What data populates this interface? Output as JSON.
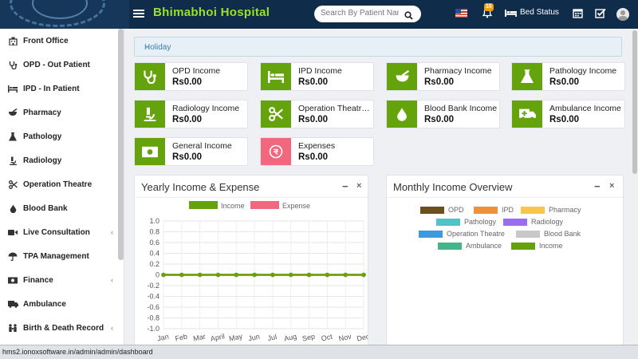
{
  "header": {
    "hospital_name": "Bhimabhoi Hospital",
    "search_placeholder": "Search By Patient Name",
    "notification_count": "16",
    "bed_status_label": "Bed Status"
  },
  "sidebar": {
    "items": [
      {
        "label": "Front Office",
        "icon": "front-office-icon"
      },
      {
        "label": "OPD - Out Patient",
        "icon": "stethoscope-icon"
      },
      {
        "label": "IPD - In Patient",
        "icon": "bed-icon"
      },
      {
        "label": "Pharmacy",
        "icon": "mortar-icon"
      },
      {
        "label": "Pathology",
        "icon": "flask-icon"
      },
      {
        "label": "Radiology",
        "icon": "microscope-icon"
      },
      {
        "label": "Operation Theatre",
        "icon": "scissors-icon"
      },
      {
        "label": "Blood Bank",
        "icon": "drop-icon"
      },
      {
        "label": "Live Consultation",
        "icon": "video-icon",
        "chevron": "‹"
      },
      {
        "label": "TPA Management",
        "icon": "umbrella-icon"
      },
      {
        "label": "Finance",
        "icon": "money-icon",
        "chevron": "‹"
      },
      {
        "label": "Ambulance",
        "icon": "ambulance-icon"
      },
      {
        "label": "Birth & Death Record",
        "icon": "family-icon",
        "chevron": "‹"
      }
    ]
  },
  "alert": {
    "text": "Holiday",
    "close": "×"
  },
  "cards": [
    {
      "label": "OPD Income",
      "value": "Rs0.00",
      "icon": "stethoscope-icon"
    },
    {
      "label": "IPD Income",
      "value": "Rs0.00",
      "icon": "bed-icon"
    },
    {
      "label": "Pharmacy Income",
      "value": "Rs0.00",
      "icon": "mortar-icon"
    },
    {
      "label": "Pathology Income",
      "value": "Rs0.00",
      "icon": "flask-icon"
    },
    {
      "label": "Radiology Income",
      "value": "Rs0.00",
      "icon": "microscope-icon"
    },
    {
      "label": "Operation Theatre Income",
      "value": "Rs0.00",
      "icon": "scissors-icon"
    },
    {
      "label": "Blood Bank Income",
      "value": "Rs0.00",
      "icon": "drop-icon"
    },
    {
      "label": "Ambulance Income",
      "value": "Rs0.00",
      "icon": "ambulance-icon"
    },
    {
      "label": "General Income",
      "value": "Rs0.00",
      "icon": "money-icon"
    },
    {
      "label": "Expenses",
      "value": "Rs0.00",
      "icon": "expense-icon"
    }
  ],
  "panels": {
    "yearly_title": "Yearly Income & Expense",
    "monthly_title": "Monthly Income Overview",
    "minimize": "−",
    "close": "×"
  },
  "monthly_legend": [
    {
      "label": "OPD",
      "color": "#6b4f1d"
    },
    {
      "label": "IPD",
      "color": "#f0913a"
    },
    {
      "label": "Pharmacy",
      "color": "#f5c84c"
    },
    {
      "label": "Pathology",
      "color": "#4fc3c8"
    },
    {
      "label": "Radiology",
      "color": "#9a6cf0"
    },
    {
      "label": "Operation Theatre",
      "color": "#3a9be0"
    },
    {
      "label": "Blood Bank",
      "color": "#c8c8c8"
    },
    {
      "label": "Ambulance",
      "color": "#43b58a"
    },
    {
      "label": "Income",
      "color": "#65a30d"
    }
  ],
  "chart_data": {
    "type": "line",
    "x": [
      "Jan",
      "Feb",
      "Mar",
      "April",
      "May",
      "Jun",
      "Jul",
      "Aug",
      "Sep",
      "Oct",
      "Nov",
      "Dec"
    ],
    "series": [
      {
        "name": "Income",
        "color": "#65a30d",
        "values": [
          0,
          0,
          0,
          0,
          0,
          0,
          0,
          0,
          0,
          0,
          0,
          0
        ]
      },
      {
        "name": "Expense",
        "color": "#f0677e",
        "values": [
          0,
          0,
          0,
          0,
          0,
          0,
          0,
          0,
          0,
          0,
          0,
          0
        ]
      }
    ],
    "yticks": [
      "1.0",
      "0.8",
      "0.6",
      "0.4",
      "0.2",
      "0",
      "-0.2",
      "-0.4",
      "-0.6",
      "-0.8",
      "-1.0"
    ],
    "ylim": [
      -1.0,
      1.0
    ],
    "grid": true,
    "legend": "top"
  },
  "status_url": "hms2.ionoxsoftware.in/admin/admin/dashboard"
}
